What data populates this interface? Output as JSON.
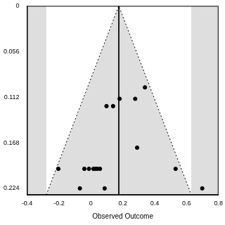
{
  "chart_data": {
    "type": "funnel",
    "x_label": "Observed Outcome",
    "xlim": [
      -0.4,
      0.8
    ],
    "xticks": [
      -0.4,
      -0.2,
      0,
      0.2,
      0.4,
      0.6,
      0.8
    ],
    "ylim": [
      0,
      0.232
    ],
    "yticks": [
      0,
      0.056,
      0.112,
      0.168,
      0.224
    ],
    "y_reversed": true,
    "grid": false,
    "summary_estimate": 0.175,
    "funnel": {
      "x": [
        -0.28,
        0.175,
        0.63
      ],
      "y": [
        0.232,
        0,
        0.232
      ],
      "line_style": "dotted"
    },
    "series": [
      {
        "color": "#000000",
        "marker": "circle",
        "x": [
          0.339,
          0.098,
          0.139,
          0.18,
          0.278,
          0.29,
          -0.204,
          -0.041,
          -0.012,
          0.016,
          0.029,
          0.041,
          0.057,
          0.531,
          -0.069,
          0.086,
          0.698
        ],
        "values": [
          0.1,
          0.123,
          0.123,
          0.114,
          0.114,
          0.174,
          0.2,
          0.2,
          0.2,
          0.2,
          0.2,
          0.2,
          0.2,
          0.2,
          0.224,
          0.224,
          0.224
        ]
      }
    ]
  }
}
